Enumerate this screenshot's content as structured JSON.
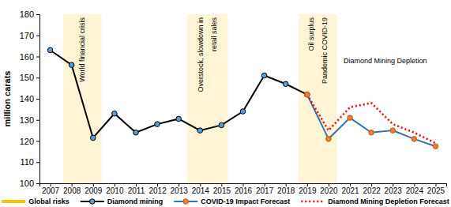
{
  "chart_data": {
    "type": "line",
    "y_label": "million carats",
    "x": [
      2007,
      2008,
      2009,
      2010,
      2011,
      2012,
      2013,
      2014,
      2015,
      2016,
      2017,
      2018,
      2019,
      2020,
      2021,
      2022,
      2023,
      2024,
      2025
    ],
    "xlim": [
      2006.5,
      2025.5
    ],
    "xticks": [
      2007,
      2008,
      2009,
      2010,
      2011,
      2012,
      2013,
      2014,
      2015,
      2016,
      2017,
      2018,
      2019,
      2020,
      2021,
      2022,
      2023,
      2024,
      2025
    ],
    "ylim": [
      100,
      180
    ],
    "yticks": [
      100,
      110,
      120,
      130,
      140,
      150,
      160,
      170,
      180
    ],
    "grid": false,
    "legend": "bottom",
    "bands": {
      "name": "Global risks",
      "color": "#ffc000",
      "ranges": [
        {
          "x0": 2007.6,
          "x1": 2009.4,
          "labels": [
            "World financial crisis"
          ]
        },
        {
          "x0": 2013.4,
          "x1": 2015.3,
          "labels": [
            "Overstock, slowdown in",
            "retail sales"
          ]
        },
        {
          "x0": 2018.6,
          "x1": 2020.4,
          "labels": [
            "Oil surplus",
            "Pandemic COVID-19"
          ]
        }
      ]
    },
    "annotations": [
      "Diamond Mining Depletion"
    ],
    "series": [
      {
        "name": "Diamond mining",
        "color": "#000000",
        "marker": "circle",
        "line_style": "solid",
        "values": [
          163,
          156,
          121.5,
          133,
          124,
          128,
          130.5,
          125,
          127.5,
          134,
          151,
          147,
          142,
          null,
          null,
          null,
          null,
          null,
          null
        ]
      },
      {
        "name": "COVID-19 Impact Forecast",
        "color": "#2e75b6",
        "marker": "circle",
        "line_style": "solid",
        "values": [
          null,
          null,
          null,
          null,
          null,
          null,
          null,
          null,
          null,
          null,
          null,
          null,
          142,
          121,
          131,
          124,
          125,
          121,
          117.5
        ]
      },
      {
        "name": "Diamond Mining Depletion Forecast",
        "color": "#ff0000",
        "marker": "none",
        "line_style": "dotted",
        "values": [
          null,
          null,
          null,
          null,
          null,
          null,
          null,
          null,
          null,
          null,
          null,
          null,
          142,
          125,
          136,
          138,
          128,
          124,
          119
        ]
      }
    ]
  }
}
